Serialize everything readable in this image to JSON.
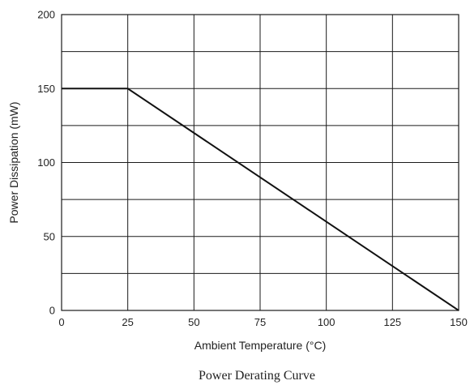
{
  "chart_data": {
    "type": "line",
    "title": "Power Derating Curve",
    "xlabel": "Ambient Temperature (°C)",
    "ylabel": "Power Dissipation  (mW)",
    "xlim": [
      0,
      150
    ],
    "ylim": [
      0,
      200
    ],
    "x_ticks": [
      0,
      25,
      50,
      75,
      100,
      125,
      150
    ],
    "y_ticks": [
      0,
      50,
      100,
      150,
      200
    ],
    "x_grid": [
      0,
      25,
      50,
      75,
      100,
      125,
      150
    ],
    "y_grid": [
      0,
      25,
      50,
      75,
      100,
      125,
      150,
      175,
      200
    ],
    "grid": true,
    "series": [
      {
        "x": [
          0,
          25,
          150
        ],
        "y": [
          150,
          150,
          0
        ]
      }
    ],
    "colors": {
      "line": "#111111",
      "grid": "#1a1a1a",
      "text": "#222222"
    }
  }
}
